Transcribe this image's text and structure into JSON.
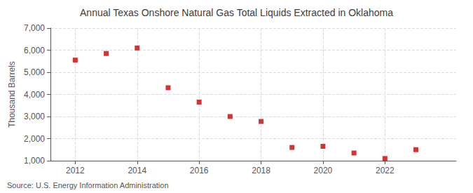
{
  "chart_data": {
    "type": "scatter",
    "title": "Annual Texas Onshore Natural Gas Total Liquids Extracted in Oklahoma",
    "ylabel": "Thousand Barrels",
    "annotations": [
      "Source: U.S. Energy Information Administration"
    ],
    "x": [
      2012,
      2013,
      2014,
      2015,
      2016,
      2017,
      2018,
      2019,
      2020,
      2021,
      2022,
      2023
    ],
    "values": [
      5550,
      5850,
      6100,
      4300,
      3650,
      3000,
      2775,
      1600,
      1650,
      1350,
      1100,
      1500
    ],
    "color": "#CC0000",
    "marker": "square",
    "xlim": [
      2011.2,
      2024.3
    ],
    "xticks": [
      2012,
      2014,
      2016,
      2018,
      2020,
      2022
    ],
    "ylim": [
      1000,
      7000
    ],
    "yticks": [
      {
        "value": 1000,
        "label": "1,000"
      },
      {
        "value": 2000,
        "label": "2,000"
      },
      {
        "value": 3000,
        "label": "3,000"
      },
      {
        "value": 4000,
        "label": "4,000"
      },
      {
        "value": 5000,
        "label": "5,000"
      },
      {
        "value": 6000,
        "label": "6,000"
      },
      {
        "value": 7000,
        "label": "7,000"
      }
    ],
    "grid": true
  }
}
